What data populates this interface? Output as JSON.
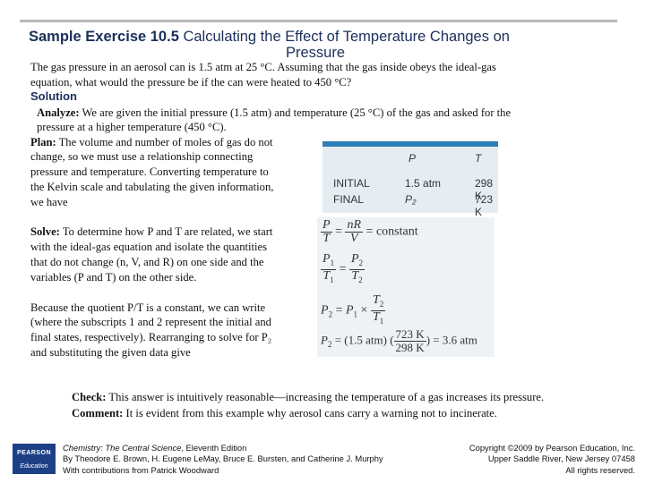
{
  "title": {
    "bold": "Sample Exercise 10.5",
    "rest": "Calculating the Effect of Temperature Changes on",
    "line2": "Pressure"
  },
  "problem": {
    "line1": "The gas pressure in an aerosol can is 1.5 atm at 25 °C. Assuming that the gas inside obeys the ideal-gas",
    "line2": "equation, what would the pressure be if the can were heated to 450 °C?"
  },
  "solution_heading": "Solution",
  "analyze": {
    "label": "Analyze:",
    "line1": "We are given the initial pressure (1.5 atm) and temperature (25 °C) of the gas and asked for the",
    "line2": "pressure at a higher temperature (450 °C)."
  },
  "plan": {
    "label": "Plan:",
    "lines": [
      "The volume and number of moles of gas do not",
      "change, so we must use a relationship connecting",
      "pressure and temperature. Converting temperature to",
      "the Kelvin scale and tabulating the given information,",
      "we have"
    ]
  },
  "table": {
    "headers": [
      "P",
      "T"
    ],
    "rows": [
      {
        "label": "INITIAL",
        "p": "1.5 atm",
        "t": "298 K"
      },
      {
        "label": "FINAL",
        "p": "P₂",
        "t": "723 K"
      }
    ]
  },
  "solve": {
    "label": "Solve:",
    "lines": [
      "To determine how P and T are related, we start",
      "with the ideal-gas equation and isolate the quantities",
      "that do not change (n, V, and R) on one side and the",
      "variables (P and T) on the other side."
    ]
  },
  "because": {
    "lines": [
      "Because the quotient P/T is a constant, we can write",
      "(where the subscripts 1 and 2 represent the initial and",
      "final states, respectively). Rearranging to solve for P₂",
      "and substituting the given data give"
    ]
  },
  "equations": {
    "constant": "constant",
    "times": "×",
    "p1val": "(1.5 atm)",
    "t2val": "723 K",
    "t1val": "298 K",
    "result": "3.6 atm"
  },
  "check": {
    "label": "Check:",
    "text": "This answer is intuitively reasonable—increasing the temperature of a gas increases its pressure."
  },
  "comment": {
    "label": "Comment:",
    "text": "It is evident from this example why aerosol cans carry a warning not to incinerate."
  },
  "footer": {
    "logo_top": "PEARSON",
    "logo_bottom": "Education",
    "book_title": "Chemistry: The Central Science",
    "edition": ", Eleventh Edition",
    "authors": "By Theodore E. Brown, H. Eugene LeMay, Bruce E. Bursten, and Catherine J. Murphy",
    "contrib": "With contributions from Patrick Woodward",
    "copyright": "Copyright ©2009 by Pearson Education, Inc.",
    "address": "Upper Saddle River, New Jersey 07458",
    "rights": "All rights reserved."
  }
}
